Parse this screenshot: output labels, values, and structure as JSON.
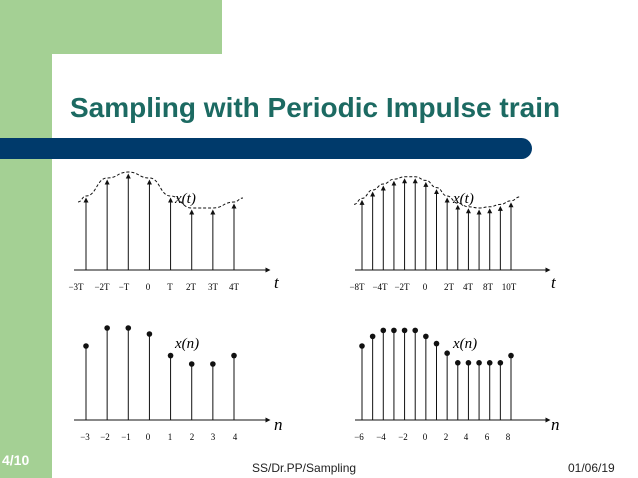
{
  "slide": {
    "title": "Sampling with Periodic Impulse train",
    "page": "4/10",
    "footer_center": "SS/Dr.PP/Sampling",
    "footer_right": "01/06/19"
  },
  "colors": {
    "green": "#a4d094",
    "title_teal": "#1c6a62",
    "navy_bar": "#003a6b"
  },
  "chart_data": [
    {
      "type": "stem",
      "signal": "impulse-sampled continuous signal",
      "label": "x(t)",
      "axis_variable": "t",
      "ticks": [
        "−3T",
        "−2T",
        "−T",
        "0",
        "T",
        "2T",
        "3T",
        "4T"
      ],
      "x": [
        -3,
        -2,
        -1,
        0,
        1,
        2,
        3,
        4
      ],
      "values": [
        0.8,
        0.95,
        1.0,
        0.95,
        0.8,
        0.7,
        0.7,
        0.75
      ],
      "envelope": true
    },
    {
      "type": "stem",
      "signal": "impulse-sampled continuous signal",
      "label": "x(t)",
      "axis_variable": "t",
      "ticks": [
        "−8T",
        "−4T",
        "−2T",
        "0",
        "2T",
        "4T",
        "8T",
        "10T"
      ],
      "x": [
        -6,
        -5,
        -4,
        -3,
        -2,
        -1,
        0,
        1,
        2,
        3,
        4,
        5,
        6,
        7,
        8
      ],
      "values": [
        0.78,
        0.85,
        0.9,
        0.94,
        0.96,
        0.96,
        0.93,
        0.87,
        0.8,
        0.74,
        0.71,
        0.7,
        0.71,
        0.73,
        0.76
      ],
      "envelope": true
    },
    {
      "type": "stem",
      "signal": "discrete-time sequence",
      "label": "x(n)",
      "axis_variable": "n",
      "ticks": [
        "−3",
        "−2",
        "−1",
        "0",
        "1",
        "2",
        "3",
        "4"
      ],
      "x": [
        -3,
        -2,
        -1,
        0,
        1,
        2,
        3,
        4
      ],
      "values": [
        0.8,
        0.95,
        0.95,
        0.9,
        0.72,
        0.65,
        0.65,
        0.72
      ],
      "envelope": false
    },
    {
      "type": "stem",
      "signal": "discrete-time sequence",
      "label": "x(n)",
      "axis_variable": "n",
      "ticks": [
        "−6",
        "−4",
        "−2",
        "0",
        "2",
        "4",
        "6",
        "8"
      ],
      "x": [
        -6,
        -5,
        -4,
        -3,
        -2,
        -1,
        0,
        1,
        2,
        3,
        4,
        5,
        6,
        7,
        8
      ],
      "values": [
        0.8,
        0.88,
        0.93,
        0.93,
        0.93,
        0.93,
        0.88,
        0.82,
        0.74,
        0.66,
        0.66,
        0.66,
        0.66,
        0.66,
        0.72
      ],
      "envelope": false
    }
  ]
}
